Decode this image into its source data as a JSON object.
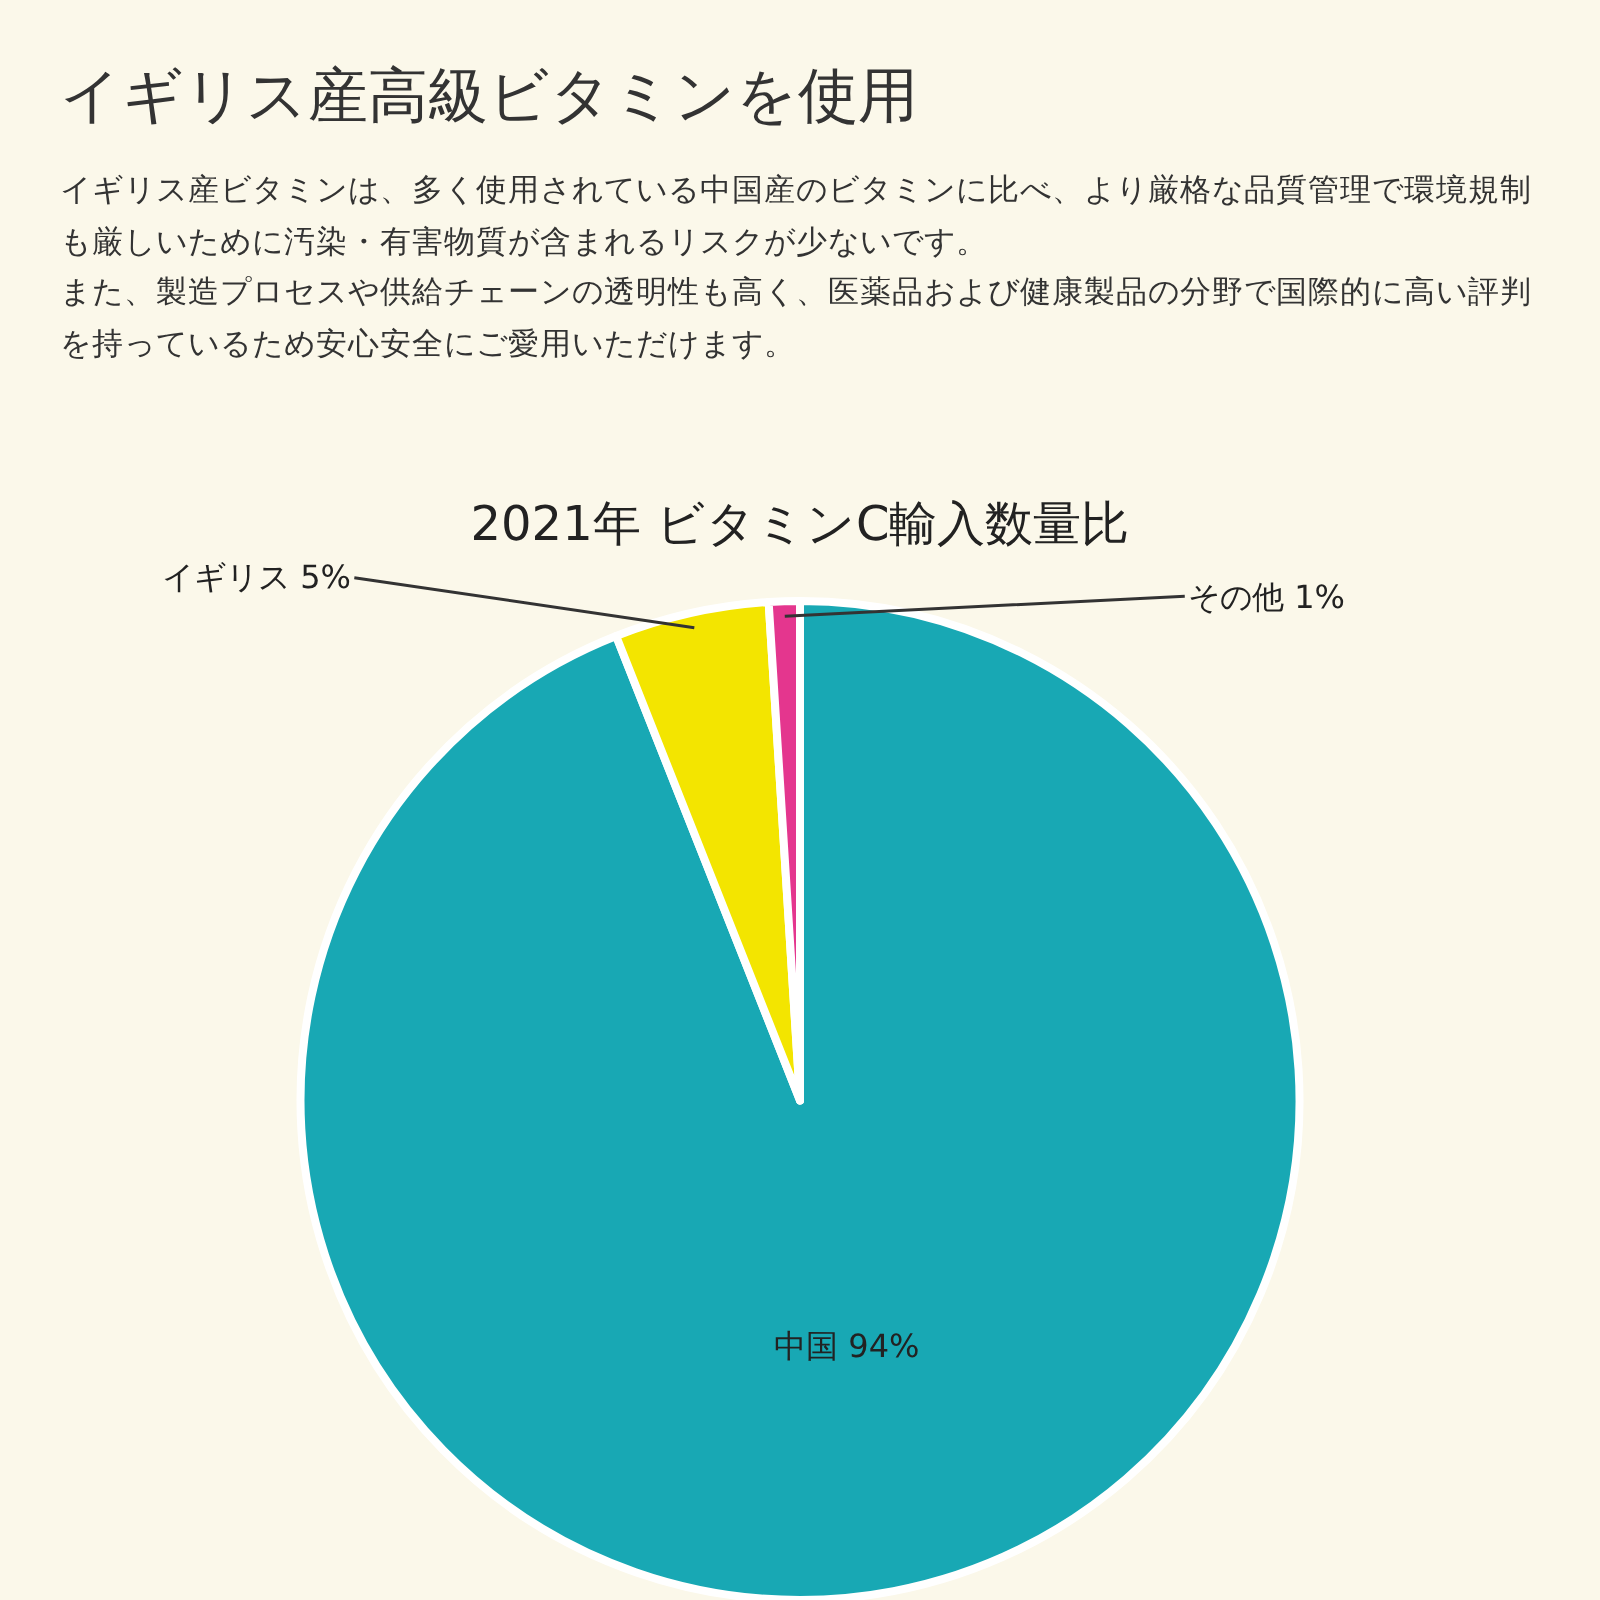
{
  "chart_data": {
    "type": "pie",
    "title": "イギリス産高級ビタミンを使用",
    "subtitle": "イギリス産ビタミンは、多く使用されている中国産のビタミンに比べ、より厳格な品質管理で環境規制も厳しいために汚染・有害物質が含まれるリスクが少ないです。",
    "annotations": [
      "また、製造プロセスや供給チェーンの透明性も高く、医薬品および健康製品の分野で国際的に高い評判を持っているため安心安全にご愛用いただけます。",
      "2021年 ビタミンC輸入数量比"
    ],
    "categories": [
      "中国",
      "イギリス",
      "その他"
    ],
    "values": [
      94,
      5,
      1
    ],
    "value_labels": [
      "94%",
      "5%",
      "1%"
    ],
    "colors": [
      "#18a8b4",
      "#f3e500",
      "#e4368e"
    ],
    "legend": false
  }
}
